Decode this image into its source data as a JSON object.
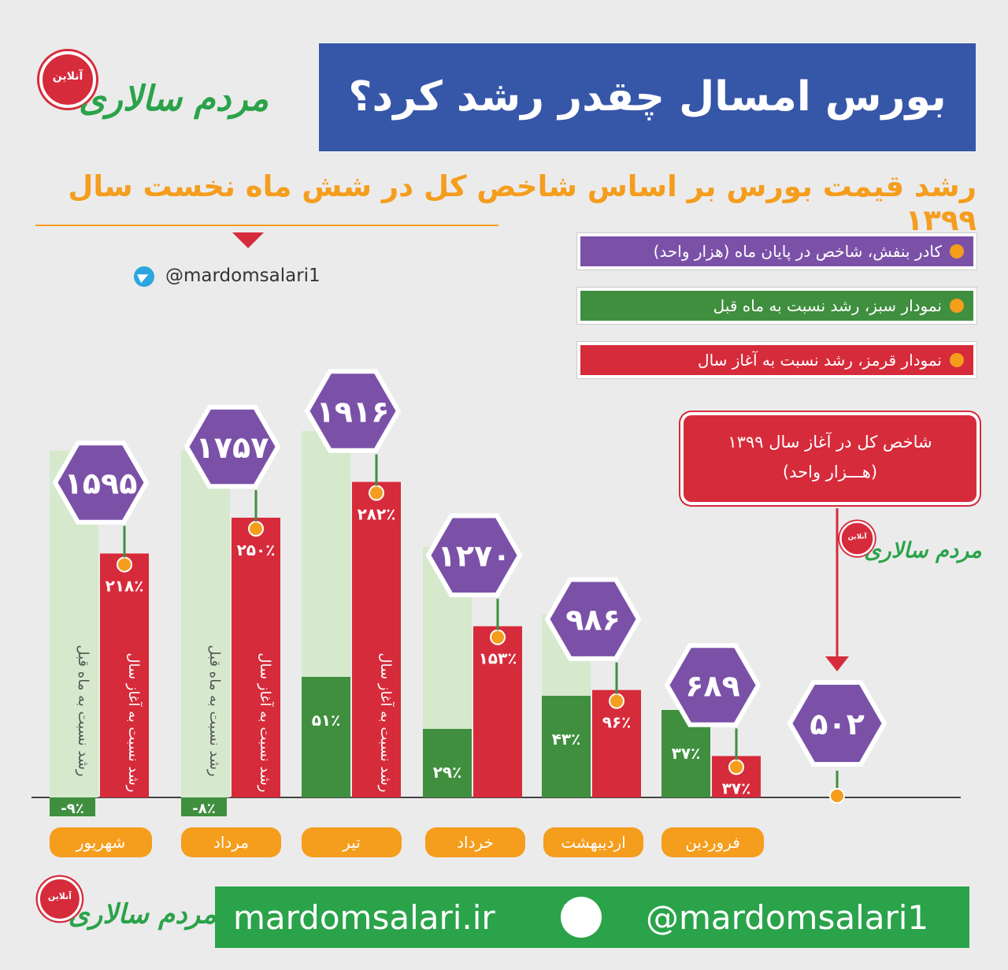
{
  "brand": {
    "name": "مردم سالاری",
    "seal_text": "آنلاین",
    "handle": "@mardomsalari1",
    "site": "mardomsalari.ir"
  },
  "title": "بورس امسال چقدر رشد کرد؟",
  "subtitle": "رشد قیمت بورس بر اساس شاخص کل در شش ماه نخست سال ۱۳۹۹",
  "legend": [
    {
      "text": "کادر بنفش، شاخص در پایان ماه (هزار واحد)",
      "color": "#7b51a8"
    },
    {
      "text": "نمودار سبز، رشد نسبت به ماه قبل",
      "color": "#3f8f3f"
    },
    {
      "text": "نمودار قرمز، رشد نسبت به آغاز سال",
      "color": "#d62b3b"
    }
  ],
  "callout": {
    "line1": "شاخص کل در آغاز سال ۱۳۹۹",
    "line2": "(هـــزار واحد)"
  },
  "colors": {
    "purple": "#7b51a8",
    "red": "#d62b3b",
    "green_dark": "#3f8f3f",
    "green_light": "#d6e9cd",
    "orange": "#f59d1d",
    "blue": "#3656a8"
  },
  "chart_data": {
    "type": "bar",
    "title": "بورس امسال چقدر رشد کرد؟",
    "subtitle": "رشد قیمت بورس بر اساس شاخص کل در شش ماه نخست سال ۱۳۹۹",
    "categories": [
      "شهریور",
      "مرداد",
      "تیر",
      "خرداد",
      "اردیبهشت",
      "فروردین"
    ],
    "series": [
      {
        "name": "نمودار سبز، رشد نسبت به ماه قبل",
        "values": [
          -9,
          -8,
          51,
          29,
          43,
          37
        ],
        "labels": [
          "-۹٪",
          "-۸٪",
          "۵۱٪",
          "۲۹٪",
          "۴۳٪",
          "۳۷٪"
        ]
      },
      {
        "name": "نمودار قرمز، رشد نسبت به آغاز سال",
        "values": [
          218,
          250,
          282,
          153,
          96,
          37
        ],
        "labels": [
          "۲۱۸٪",
          "۲۵۰٪",
          "۲۸۲٪",
          "۱۵۳٪",
          "۹۶٪",
          "۳۷٪"
        ]
      }
    ],
    "index_end_of_month": {
      "values": [
        1595,
        1757,
        1916,
        1270,
        986,
        689
      ],
      "labels": [
        "۱۵۹۵",
        "۱۷۵۷",
        "۱۹۱۶",
        "۱۲۷۰",
        "۹۸۶",
        "۶۸۹"
      ]
    },
    "index_start_of_year": {
      "value": 502,
      "label": "۵۰۲"
    },
    "vertical_labels": {
      "red": "رشد نسبت به آغاز سال",
      "green": "رشد نسبت به ماه قبل"
    }
  }
}
